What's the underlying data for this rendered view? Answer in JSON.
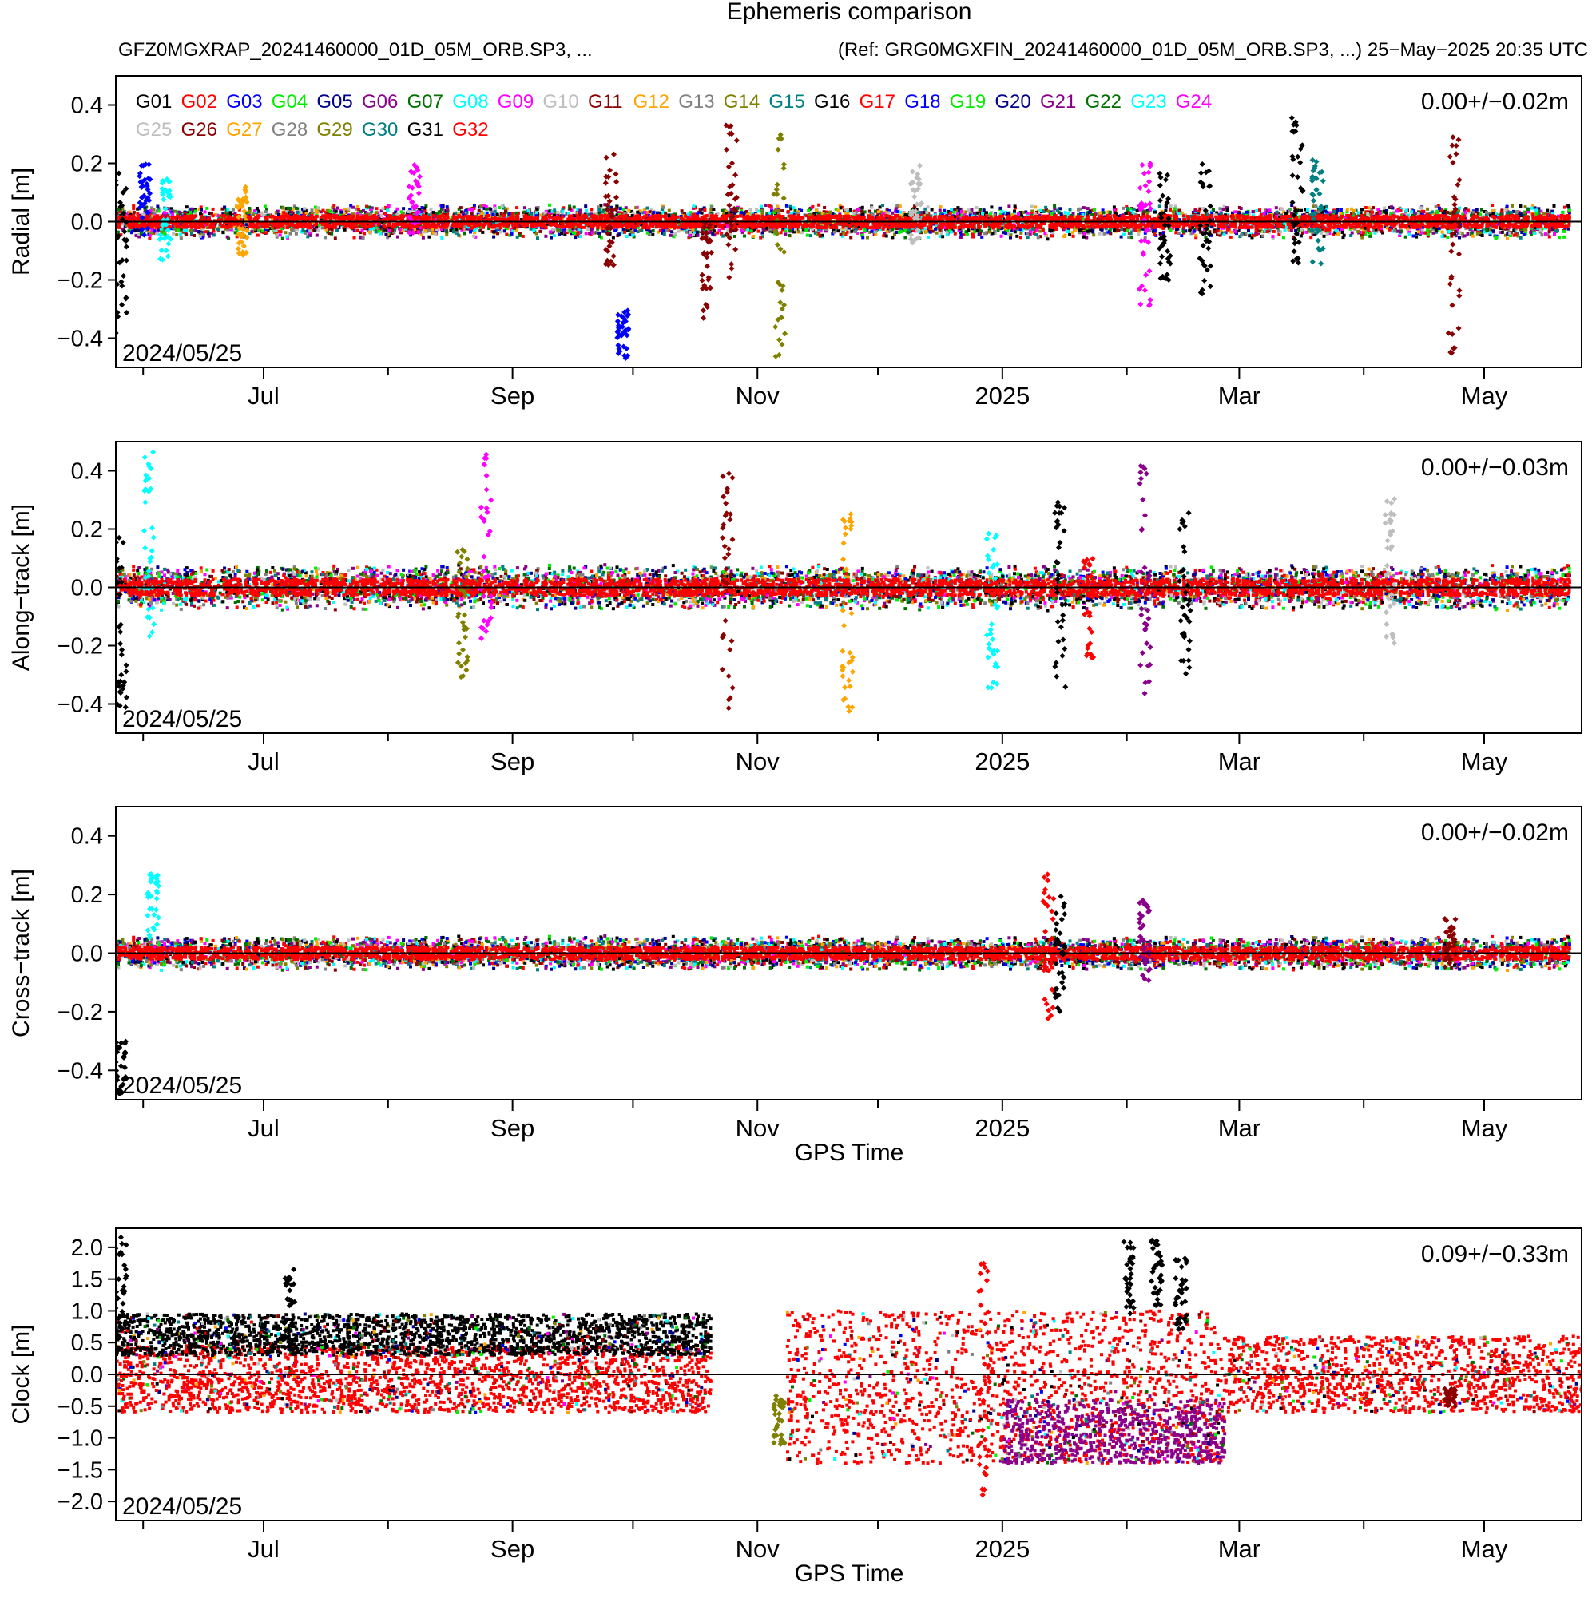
{
  "header": {
    "title": "Ephemeris comparison",
    "subtitle_left": "GFZ0MGXRAP_20241460000_01D_05M_ORB.SP3, ...",
    "subtitle_right": "(Ref: GRG0MGXFIN_20241460000_01D_05M_ORB.SP3, ...) 25−May−2025 20:35 UTC"
  },
  "legend": {
    "row1": [
      {
        "name": "G01",
        "color": "#000000"
      },
      {
        "name": "G02",
        "color": "#ff0000"
      },
      {
        "name": "G03",
        "color": "#0000ff"
      },
      {
        "name": "G04",
        "color": "#00ee00"
      },
      {
        "name": "G05",
        "color": "#00008b"
      },
      {
        "name": "G06",
        "color": "#8b008b"
      },
      {
        "name": "G07",
        "color": "#007000"
      },
      {
        "name": "G08",
        "color": "#00ffff"
      },
      {
        "name": "G09",
        "color": "#ff00ff"
      },
      {
        "name": "G10",
        "color": "#bebebe"
      },
      {
        "name": "G11",
        "color": "#8b0000"
      },
      {
        "name": "G12",
        "color": "#ffa500"
      },
      {
        "name": "G13",
        "color": "#808080"
      },
      {
        "name": "G14",
        "color": "#808000"
      },
      {
        "name": "G15",
        "color": "#008080"
      },
      {
        "name": "G16",
        "color": "#000000"
      },
      {
        "name": "G17",
        "color": "#ff0000"
      },
      {
        "name": "G18",
        "color": "#0000ff"
      },
      {
        "name": "G19",
        "color": "#00ee00"
      },
      {
        "name": "G20",
        "color": "#00008b"
      },
      {
        "name": "G21",
        "color": "#8b008b"
      },
      {
        "name": "G22",
        "color": "#007000"
      },
      {
        "name": "G23",
        "color": "#00ffff"
      },
      {
        "name": "G24",
        "color": "#ff00ff"
      }
    ],
    "row2": [
      {
        "name": "G25",
        "color": "#bebebe"
      },
      {
        "name": "G26",
        "color": "#8b0000"
      },
      {
        "name": "G27",
        "color": "#ffa500"
      },
      {
        "name": "G28",
        "color": "#808080"
      },
      {
        "name": "G29",
        "color": "#808000"
      },
      {
        "name": "G30",
        "color": "#008080"
      },
      {
        "name": "G31",
        "color": "#000000"
      },
      {
        "name": "G32",
        "color": "#ff0000"
      }
    ]
  },
  "chart_data": [
    {
      "type": "scatter",
      "ylabel": "Radial [m]",
      "xlabel": "",
      "ylim": [
        -0.5,
        0.5
      ],
      "yticks": [
        "0.4",
        "0.2",
        "0.0",
        "−0.2",
        "−0.4"
      ],
      "xticks": [
        "Jul",
        "Sep",
        "Nov",
        "2025",
        "Mar",
        "May"
      ],
      "stat": "0.00+/−0.02m",
      "start_label": "2024/05/25",
      "spread": 0.03,
      "spikes": [
        {
          "date": "2024-05-26",
          "range": [
            -0.4,
            0.2
          ],
          "color": "#000000"
        },
        {
          "date": "2024-06-01",
          "range": [
            -0.05,
            0.2
          ],
          "color": "#0000ff"
        },
        {
          "date": "2024-06-06",
          "range": [
            -0.15,
            0.15
          ],
          "color": "#00ffff"
        },
        {
          "date": "2024-06-25",
          "range": [
            -0.12,
            0.12
          ],
          "color": "#ffa500"
        },
        {
          "date": "2024-08-07",
          "range": [
            -0.05,
            0.2
          ],
          "color": "#ff00ff"
        },
        {
          "date": "2024-09-25",
          "range": [
            -0.15,
            0.25
          ],
          "color": "#8b0000"
        },
        {
          "date": "2024-09-28",
          "range": [
            -0.47,
            -0.3
          ],
          "color": "#0000ff"
        },
        {
          "date": "2024-10-19",
          "range": [
            -0.35,
            0.0
          ],
          "color": "#8b0000"
        },
        {
          "date": "2024-10-25",
          "range": [
            -0.25,
            0.34
          ],
          "color": "#8b0000"
        },
        {
          "date": "2024-11-06",
          "range": [
            -0.47,
            0.3
          ],
          "color": "#808000"
        },
        {
          "date": "2024-12-10",
          "range": [
            -0.1,
            0.2
          ],
          "color": "#bebebe"
        },
        {
          "date": "2025-02-05",
          "range": [
            -0.3,
            0.2
          ],
          "color": "#ff00ff"
        },
        {
          "date": "2025-02-10",
          "range": [
            -0.2,
            0.18
          ],
          "color": "#000000"
        },
        {
          "date": "2025-02-20",
          "range": [
            -0.25,
            0.2
          ],
          "color": "#000000"
        },
        {
          "date": "2025-03-15",
          "range": [
            -0.15,
            0.37
          ],
          "color": "#000000"
        },
        {
          "date": "2025-03-20",
          "range": [
            -0.15,
            0.25
          ],
          "color": "#008080"
        },
        {
          "date": "2025-04-23",
          "range": [
            -0.47,
            0.3
          ],
          "color": "#8b0000"
        }
      ]
    },
    {
      "type": "scatter",
      "ylabel": "Along−track [m]",
      "xlabel": "",
      "ylim": [
        -0.5,
        0.5
      ],
      "yticks": [
        "0.4",
        "0.2",
        "0.0",
        "−0.2",
        "−0.4"
      ],
      "xticks": [
        "Jul",
        "Sep",
        "Nov",
        "2025",
        "Mar",
        "May"
      ],
      "stat": "0.00+/−0.03m",
      "start_label": "2024/05/25",
      "spread": 0.04,
      "spikes": [
        {
          "date": "2024-05-26",
          "range": [
            -0.47,
            0.2
          ],
          "color": "#000000"
        },
        {
          "date": "2024-06-02",
          "range": [
            -0.18,
            0.47
          ],
          "color": "#00ffff"
        },
        {
          "date": "2024-08-19",
          "range": [
            -0.35,
            0.2
          ],
          "color": "#808000"
        },
        {
          "date": "2024-08-25",
          "range": [
            -0.2,
            0.48
          ],
          "color": "#ff00ff"
        },
        {
          "date": "2024-10-24",
          "range": [
            -0.5,
            0.44
          ],
          "color": "#8b0000"
        },
        {
          "date": "2024-11-23",
          "range": [
            -0.43,
            0.27
          ],
          "color": "#ffa500"
        },
        {
          "date": "2024-12-29",
          "range": [
            -0.35,
            0.2
          ],
          "color": "#00ffff"
        },
        {
          "date": "2025-01-15",
          "range": [
            -0.35,
            0.3
          ],
          "color": "#000000"
        },
        {
          "date": "2025-01-22",
          "range": [
            -0.25,
            0.1
          ],
          "color": "#ff0000"
        },
        {
          "date": "2025-02-05",
          "range": [
            -0.38,
            0.43
          ],
          "color": "#8b008b"
        },
        {
          "date": "2025-02-15",
          "range": [
            -0.3,
            0.26
          ],
          "color": "#000000"
        },
        {
          "date": "2025-04-07",
          "range": [
            -0.2,
            0.32
          ],
          "color": "#bebebe"
        }
      ]
    },
    {
      "type": "scatter",
      "ylabel": "Cross−track [m]",
      "xlabel": "GPS Time",
      "ylim": [
        -0.5,
        0.5
      ],
      "yticks": [
        "0.4",
        "0.2",
        "0.0",
        "−0.2",
        "−0.4"
      ],
      "xticks": [
        "Jul",
        "Sep",
        "Nov",
        "2025",
        "Mar",
        "May"
      ],
      "stat": "0.00+/−0.02m",
      "start_label": "2024/05/25",
      "spread": 0.03,
      "spikes": [
        {
          "date": "2024-05-26",
          "range": [
            -0.48,
            -0.3
          ],
          "color": "#000000"
        },
        {
          "date": "2024-06-03",
          "range": [
            0.05,
            0.27
          ],
          "color": "#00ffff"
        },
        {
          "date": "2025-01-12",
          "range": [
            -0.28,
            0.28
          ],
          "color": "#ff0000"
        },
        {
          "date": "2025-01-15",
          "range": [
            -0.2,
            0.2
          ],
          "color": "#000000"
        },
        {
          "date": "2025-02-05",
          "range": [
            -0.1,
            0.18
          ],
          "color": "#8b008b"
        },
        {
          "date": "2025-04-22",
          "range": [
            -0.05,
            0.12
          ],
          "color": "#8b0000"
        }
      ]
    },
    {
      "type": "scatter",
      "ylabel": "Clock [m]",
      "xlabel": "GPS Time",
      "ylim": [
        -2.3,
        2.3
      ],
      "yticks": [
        "2.0",
        "1.5",
        "1.0",
        "0.5",
        "0.0",
        "−0.5",
        "−1.0",
        "−1.5",
        "−2.0"
      ],
      "xticks": [
        "Jul",
        "Sep",
        "Nov",
        "2025",
        "Mar",
        "May"
      ],
      "stat": "0.09+/−0.33m",
      "start_label": "2024/05/25",
      "bands": [
        {
          "from": "2024-05-25",
          "to": "2024-10-20",
          "low": -0.6,
          "high": 0.45,
          "color": "#ff0000"
        },
        {
          "from": "2024-05-25",
          "to": "2024-10-20",
          "low": 0.3,
          "high": 0.95,
          "color": "#000000"
        },
        {
          "from": "2024-11-08",
          "to": "2025-02-25",
          "low": -1.4,
          "high": 1.0,
          "color": "#ff0000"
        },
        {
          "from": "2025-01-01",
          "to": "2025-02-25",
          "low": -1.4,
          "high": -0.4,
          "color": "#8b008b"
        },
        {
          "from": "2025-02-25",
          "to": "2025-05-25",
          "low": -0.6,
          "high": 0.6,
          "color": "#ff0000"
        }
      ],
      "spikes": [
        {
          "date": "2024-05-26",
          "range": [
            0.3,
            2.2
          ],
          "color": "#000000"
        },
        {
          "date": "2024-07-07",
          "range": [
            0.3,
            1.7
          ],
          "color": "#000000"
        },
        {
          "date": "2024-11-06",
          "range": [
            -1.1,
            -0.3
          ],
          "color": "#808000"
        },
        {
          "date": "2024-12-27",
          "range": [
            -1.9,
            1.8
          ],
          "color": "#ff0000"
        },
        {
          "date": "2025-02-01",
          "range": [
            0.9,
            2.1
          ],
          "color": "#000000"
        },
        {
          "date": "2025-02-08",
          "range": [
            1.0,
            2.2
          ],
          "color": "#000000"
        },
        {
          "date": "2025-02-14",
          "range": [
            0.7,
            1.9
          ],
          "color": "#000000"
        },
        {
          "date": "2025-04-22",
          "range": [
            -0.5,
            -0.2
          ],
          "color": "#8b0000"
        }
      ]
    }
  ]
}
